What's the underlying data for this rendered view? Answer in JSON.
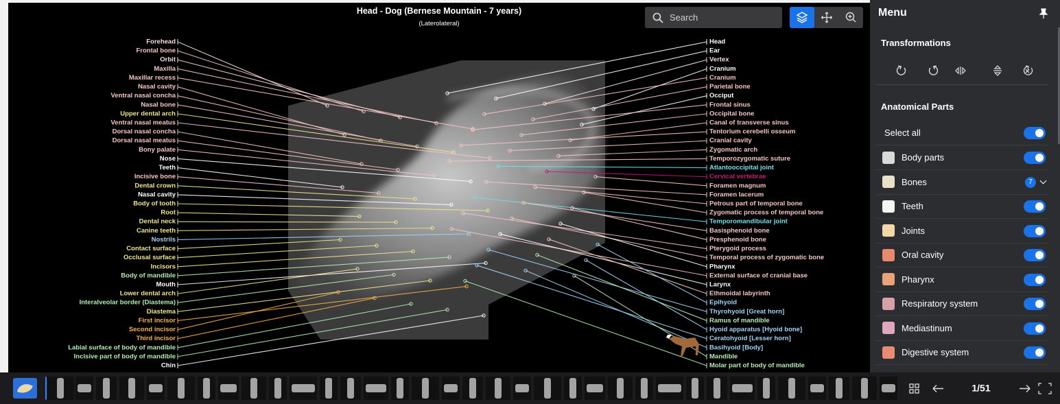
{
  "header": {
    "title": "Head - Dog (Bernese Mountain - 7 years)",
    "subtitle": "(Laterolateral)",
    "search": "Search"
  },
  "labels": {
    "left": [
      {
        "text": "Forehead",
        "color": "#f6dede"
      },
      {
        "text": "Frontal bone",
        "color": "#f4c4c4"
      },
      {
        "text": "Orbit",
        "color": "#f6dede"
      },
      {
        "text": "Maxilla",
        "color": "#f4c4c4"
      },
      {
        "text": "Maxillar recess",
        "color": "#f4c4c4"
      },
      {
        "text": "Nasal cavity",
        "color": "#f4c4c4"
      },
      {
        "text": "Ventral nasal concha",
        "color": "#f4c4c4"
      },
      {
        "text": "Nasal bone",
        "color": "#f4c4c4"
      },
      {
        "text": "Upper dental arch",
        "color": "#f0e68c"
      },
      {
        "text": "Ventral nasal meatus",
        "color": "#f4c4c4"
      },
      {
        "text": "Dorsal nasal concha",
        "color": "#f4c4c4"
      },
      {
        "text": "Dorsal nasal meatus",
        "color": "#f4c4c4"
      },
      {
        "text": "Bony palate",
        "color": "#f4c4c4"
      },
      {
        "text": "Nose",
        "color": "#ffffff"
      },
      {
        "text": "Teeth",
        "color": "#ffffff"
      },
      {
        "text": "Incisive bone",
        "color": "#f4c4c4"
      },
      {
        "text": "Dental crown",
        "color": "#f0e68c"
      },
      {
        "text": "Nasal cavity",
        "color": "#ffffff"
      },
      {
        "text": "Body of tooth",
        "color": "#f0e68c"
      },
      {
        "text": "Root",
        "color": "#f0e68c"
      },
      {
        "text": "Dental neck",
        "color": "#f0e68c"
      },
      {
        "text": "Canine teeth",
        "color": "#f0e68c"
      },
      {
        "text": "Nostrils",
        "color": "#9fd3f5"
      },
      {
        "text": "Contact surface",
        "color": "#f0e68c"
      },
      {
        "text": "Occlusal surface",
        "color": "#f0e68c"
      },
      {
        "text": "Incisors",
        "color": "#f0e68c"
      },
      {
        "text": "Body of mandible",
        "color": "#b4ecb4"
      },
      {
        "text": "Mouth",
        "color": "#ffffff"
      },
      {
        "text": "Lower dental arch",
        "color": "#f0e68c"
      },
      {
        "text": "Interalveolar border (Diastema)",
        "color": "#b4ecb4"
      },
      {
        "text": "Diastema",
        "color": "#f0e68c"
      },
      {
        "text": "First incisor",
        "color": "#f5b04a"
      },
      {
        "text": "Second incisor",
        "color": "#f5b04a"
      },
      {
        "text": "Third incisor",
        "color": "#f5b04a"
      },
      {
        "text": "Labial surface of body of mandible",
        "color": "#b4ecb4"
      },
      {
        "text": "Incisive part of body of mandible",
        "color": "#b4ecb4"
      },
      {
        "text": "Chin",
        "color": "#ffffff"
      }
    ],
    "right": [
      {
        "text": "Head",
        "color": "#ffffff"
      },
      {
        "text": "Ear",
        "color": "#ffffff"
      },
      {
        "text": "Vertex",
        "color": "#f6dede"
      },
      {
        "text": "Cranium",
        "color": "#ffffff"
      },
      {
        "text": "Cranium",
        "color": "#f4c4c4"
      },
      {
        "text": "Parietal bone",
        "color": "#f4c4c4"
      },
      {
        "text": "Occiput",
        "color": "#ffffff"
      },
      {
        "text": "Frontal sinus",
        "color": "#f4c4c4"
      },
      {
        "text": "Occipital bone",
        "color": "#f4c4c4"
      },
      {
        "text": "Canal of transverse sinus",
        "color": "#f4c4c4"
      },
      {
        "text": "Tentorium cerebelli osseum",
        "color": "#f4c4c4"
      },
      {
        "text": "Cranial cavity",
        "color": "#f4c4c4"
      },
      {
        "text": "Zygomatic arch",
        "color": "#f4c4c4"
      },
      {
        "text": "Temporozygomatic suture",
        "color": "#f4c4c4"
      },
      {
        "text": "Atlantooccipital joint",
        "color": "#6fe0e8"
      },
      {
        "text": "Cervical vertebrae",
        "color": "#c2187a"
      },
      {
        "text": "Foramen magnum",
        "color": "#f4c4c4"
      },
      {
        "text": "Foramen lacerum",
        "color": "#f4c4c4"
      },
      {
        "text": "Petrous part of temporal bone",
        "color": "#f4c4c4"
      },
      {
        "text": "Zygomatic process of temporal bone",
        "color": "#f4c4c4"
      },
      {
        "text": "Temporomandibular joint",
        "color": "#6fe0e8"
      },
      {
        "text": "Basisphenoid bone",
        "color": "#f4c4c4"
      },
      {
        "text": "Presphenoid bone",
        "color": "#f4c4c4"
      },
      {
        "text": "Pterygoid process",
        "color": "#f4c4c4"
      },
      {
        "text": "Temporal process of zygomatic bone",
        "color": "#f4c4c4"
      },
      {
        "text": "Pharynx",
        "color": "#ffffff"
      },
      {
        "text": "External surface of cranial base",
        "color": "#f4c4c4"
      },
      {
        "text": "Larynx",
        "color": "#ffffff"
      },
      {
        "text": "Ethmoidal labyrinth",
        "color": "#f4c4c4"
      },
      {
        "text": "Epihyoid",
        "color": "#9fd3f5"
      },
      {
        "text": "Thyrohyoid [Great horn]",
        "color": "#9fd3f5"
      },
      {
        "text": "Ramus of mandible",
        "color": "#b4ecb4"
      },
      {
        "text": "Hyoid apparatus [Hyoid bone]",
        "color": "#9fd3f5"
      },
      {
        "text": "Ceratohyoid [Lesser horn]",
        "color": "#9fd3f5"
      },
      {
        "text": "Basihyoid [Body]",
        "color": "#9fd3f5"
      },
      {
        "text": "Mandible",
        "color": "#b4ecb4"
      },
      {
        "text": "Molar part of body of mandible",
        "color": "#b4ecb4"
      }
    ]
  },
  "menu": {
    "title": "Menu",
    "transformations": "Transformations",
    "anatomical_parts": "Anatomical Parts",
    "select_all": "Select all",
    "items": [
      {
        "text": "Body parts",
        "color": "#d9d9d9"
      },
      {
        "text": "Bones",
        "color": "#e8e0c8",
        "badge": "7"
      },
      {
        "text": "Teeth",
        "color": "#f5f5f5"
      },
      {
        "text": "Joints",
        "color": "#f3d6a8"
      },
      {
        "text": "Oral cavity",
        "color": "#e88a6e"
      },
      {
        "text": "Pharynx",
        "color": "#e9a27a"
      },
      {
        "text": "Respiratory system",
        "color": "#d8a0a8"
      },
      {
        "text": "Mediastinum",
        "color": "#e0a6c0"
      },
      {
        "text": "Digestive system",
        "color": "#e98a74"
      }
    ]
  },
  "footer": {
    "page": "1/51"
  }
}
